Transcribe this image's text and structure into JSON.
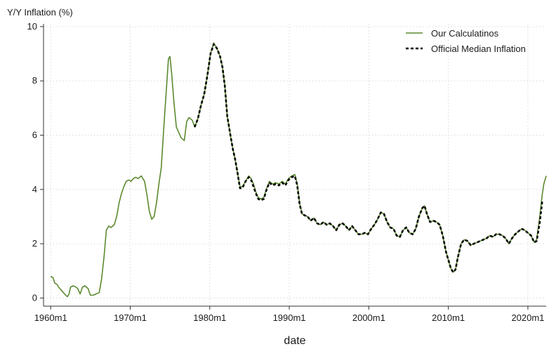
{
  "chart_data": {
    "type": "line",
    "ylabel": "Y/Y Inflation (%)",
    "xlabel": "date",
    "x_unit": "year",
    "xlim": [
      1960,
      2022.3
    ],
    "ylim": [
      0,
      10
    ],
    "grid": true,
    "legend_position": "top-right",
    "x_ticks": [
      {
        "value": 1960,
        "label": "1960m1"
      },
      {
        "value": 1970,
        "label": "1970m1"
      },
      {
        "value": 1980,
        "label": "1980m1"
      },
      {
        "value": 1990,
        "label": "1990m1"
      },
      {
        "value": 2000,
        "label": "2000m1"
      },
      {
        "value": 2010,
        "label": "2010m1"
      },
      {
        "value": 2020,
        "label": "2020m1"
      }
    ],
    "y_ticks": [
      {
        "value": 0,
        "label": "0"
      },
      {
        "value": 2,
        "label": "2"
      },
      {
        "value": 4,
        "label": "4"
      },
      {
        "value": 6,
        "label": "6"
      },
      {
        "value": 8,
        "label": "8"
      },
      {
        "value": 10,
        "label": "10"
      }
    ],
    "series": [
      {
        "name": "Our Calculatinos",
        "color": "#5b8a2f",
        "style": "solid",
        "points": [
          [
            1960.0,
            0.8
          ],
          [
            1960.3,
            0.75
          ],
          [
            1960.5,
            0.55
          ],
          [
            1960.8,
            0.5
          ],
          [
            1961.0,
            0.4
          ],
          [
            1961.3,
            0.3
          ],
          [
            1961.6,
            0.2
          ],
          [
            1961.9,
            0.1
          ],
          [
            1962.1,
            0.05
          ],
          [
            1962.3,
            0.15
          ],
          [
            1962.5,
            0.4
          ],
          [
            1962.8,
            0.45
          ],
          [
            1963.1,
            0.42
          ],
          [
            1963.4,
            0.35
          ],
          [
            1963.7,
            0.15
          ],
          [
            1964.0,
            0.4
          ],
          [
            1964.3,
            0.45
          ],
          [
            1964.7,
            0.35
          ],
          [
            1965.0,
            0.1
          ],
          [
            1965.3,
            0.1
          ],
          [
            1965.7,
            0.15
          ],
          [
            1966.1,
            0.2
          ],
          [
            1966.4,
            0.7
          ],
          [
            1966.7,
            1.5
          ],
          [
            1967.0,
            2.5
          ],
          [
            1967.3,
            2.65
          ],
          [
            1967.6,
            2.6
          ],
          [
            1968.0,
            2.7
          ],
          [
            1968.3,
            3.0
          ],
          [
            1968.6,
            3.5
          ],
          [
            1968.9,
            3.85
          ],
          [
            1969.2,
            4.1
          ],
          [
            1969.5,
            4.3
          ],
          [
            1969.8,
            4.35
          ],
          [
            1970.1,
            4.3
          ],
          [
            1970.4,
            4.4
          ],
          [
            1970.7,
            4.45
          ],
          [
            1971.0,
            4.4
          ],
          [
            1971.4,
            4.5
          ],
          [
            1971.8,
            4.3
          ],
          [
            1972.1,
            3.8
          ],
          [
            1972.4,
            3.2
          ],
          [
            1972.7,
            2.9
          ],
          [
            1973.0,
            3.0
          ],
          [
            1973.3,
            3.5
          ],
          [
            1973.6,
            4.2
          ],
          [
            1973.9,
            4.8
          ],
          [
            1974.2,
            6.2
          ],
          [
            1974.5,
            7.5
          ],
          [
            1974.8,
            8.8
          ],
          [
            1975.0,
            8.9
          ],
          [
            1975.2,
            8.3
          ],
          [
            1975.5,
            7.2
          ],
          [
            1975.8,
            6.3
          ],
          [
            1976.1,
            6.1
          ],
          [
            1976.4,
            5.9
          ],
          [
            1976.8,
            5.8
          ],
          [
            1977.1,
            6.5
          ],
          [
            1977.4,
            6.65
          ],
          [
            1977.8,
            6.55
          ],
          [
            1978.1,
            6.3
          ],
          [
            1978.5,
            6.6
          ],
          [
            1978.9,
            7.1
          ],
          [
            1979.3,
            7.5
          ],
          [
            1979.7,
            8.2
          ],
          [
            1980.1,
            9.0
          ],
          [
            1980.5,
            9.4
          ],
          [
            1980.9,
            9.2
          ],
          [
            1981.3,
            8.9
          ],
          [
            1981.6,
            8.5
          ],
          [
            1981.9,
            7.8
          ],
          [
            1982.2,
            6.7
          ],
          [
            1982.6,
            6.0
          ],
          [
            1982.9,
            5.5
          ],
          [
            1983.2,
            5.1
          ],
          [
            1983.5,
            4.6
          ],
          [
            1983.8,
            4.1
          ],
          [
            1984.1,
            4.1
          ],
          [
            1984.5,
            4.3
          ],
          [
            1984.9,
            4.5
          ],
          [
            1985.2,
            4.4
          ],
          [
            1985.5,
            4.2
          ],
          [
            1985.8,
            3.9
          ],
          [
            1986.1,
            3.7
          ],
          [
            1986.4,
            3.65
          ],
          [
            1986.8,
            3.7
          ],
          [
            1987.1,
            4.0
          ],
          [
            1987.5,
            4.3
          ],
          [
            1987.9,
            4.2
          ],
          [
            1988.3,
            4.25
          ],
          [
            1988.7,
            4.2
          ],
          [
            1989.1,
            4.3
          ],
          [
            1989.5,
            4.2
          ],
          [
            1989.9,
            4.4
          ],
          [
            1990.3,
            4.5
          ],
          [
            1990.7,
            4.55
          ],
          [
            1991.0,
            4.2
          ],
          [
            1991.3,
            3.5
          ],
          [
            1991.6,
            3.1
          ],
          [
            1991.9,
            3.05
          ],
          [
            1992.3,
            3.0
          ],
          [
            1992.7,
            2.85
          ],
          [
            1993.1,
            2.95
          ],
          [
            1993.5,
            2.75
          ],
          [
            1993.9,
            2.7
          ],
          [
            1994.3,
            2.8
          ],
          [
            1994.7,
            2.7
          ],
          [
            1995.1,
            2.75
          ],
          [
            1995.5,
            2.65
          ],
          [
            1995.9,
            2.5
          ],
          [
            1996.3,
            2.7
          ],
          [
            1996.7,
            2.75
          ],
          [
            1997.1,
            2.65
          ],
          [
            1997.5,
            2.5
          ],
          [
            1997.9,
            2.65
          ],
          [
            1998.3,
            2.5
          ],
          [
            1998.7,
            2.35
          ],
          [
            1999.1,
            2.35
          ],
          [
            1999.5,
            2.4
          ],
          [
            1999.9,
            2.35
          ],
          [
            2000.3,
            2.55
          ],
          [
            2000.7,
            2.7
          ],
          [
            2001.1,
            2.9
          ],
          [
            2001.5,
            3.15
          ],
          [
            2001.9,
            3.1
          ],
          [
            2002.3,
            2.8
          ],
          [
            2002.7,
            2.6
          ],
          [
            2003.1,
            2.55
          ],
          [
            2003.5,
            2.3
          ],
          [
            2003.9,
            2.25
          ],
          [
            2004.3,
            2.5
          ],
          [
            2004.7,
            2.6
          ],
          [
            2005.1,
            2.4
          ],
          [
            2005.5,
            2.35
          ],
          [
            2005.9,
            2.55
          ],
          [
            2006.3,
            3.0
          ],
          [
            2006.7,
            3.3
          ],
          [
            2007.0,
            3.4
          ],
          [
            2007.3,
            3.1
          ],
          [
            2007.7,
            2.8
          ],
          [
            2008.1,
            2.85
          ],
          [
            2008.5,
            2.8
          ],
          [
            2008.9,
            2.7
          ],
          [
            2009.3,
            2.3
          ],
          [
            2009.7,
            1.7
          ],
          [
            2010.0,
            1.4
          ],
          [
            2010.3,
            1.1
          ],
          [
            2010.6,
            0.95
          ],
          [
            2010.9,
            1.05
          ],
          [
            2011.2,
            1.5
          ],
          [
            2011.6,
            2.0
          ],
          [
            2012.0,
            2.15
          ],
          [
            2012.4,
            2.1
          ],
          [
            2012.8,
            1.95
          ],
          [
            2013.2,
            2.0
          ],
          [
            2013.6,
            2.05
          ],
          [
            2014.0,
            2.1
          ],
          [
            2014.4,
            2.15
          ],
          [
            2014.8,
            2.2
          ],
          [
            2015.2,
            2.3
          ],
          [
            2015.6,
            2.25
          ],
          [
            2016.0,
            2.35
          ],
          [
            2016.4,
            2.35
          ],
          [
            2016.8,
            2.3
          ],
          [
            2017.2,
            2.2
          ],
          [
            2017.6,
            2.0
          ],
          [
            2018.0,
            2.2
          ],
          [
            2018.4,
            2.35
          ],
          [
            2018.8,
            2.45
          ],
          [
            2019.2,
            2.55
          ],
          [
            2019.6,
            2.5
          ],
          [
            2020.0,
            2.4
          ],
          [
            2020.4,
            2.3
          ],
          [
            2020.8,
            2.05
          ],
          [
            2021.1,
            2.15
          ],
          [
            2021.5,
            3.0
          ],
          [
            2021.8,
            3.8
          ],
          [
            2022.0,
            4.2
          ],
          [
            2022.3,
            4.5
          ]
        ]
      },
      {
        "name": "Official Median Inflation",
        "color": "#000000",
        "style": "dashed",
        "points": [
          [
            1978.1,
            6.3
          ],
          [
            1978.5,
            6.6
          ],
          [
            1978.9,
            7.1
          ],
          [
            1979.3,
            7.5
          ],
          [
            1979.7,
            8.2
          ],
          [
            1980.1,
            9.0
          ],
          [
            1980.5,
            9.35
          ],
          [
            1980.9,
            9.2
          ],
          [
            1981.3,
            8.9
          ],
          [
            1981.6,
            8.5
          ],
          [
            1981.9,
            7.8
          ],
          [
            1982.2,
            6.7
          ],
          [
            1982.6,
            6.0
          ],
          [
            1982.9,
            5.5
          ],
          [
            1983.2,
            5.1
          ],
          [
            1983.5,
            4.6
          ],
          [
            1983.8,
            4.05
          ],
          [
            1984.1,
            4.05
          ],
          [
            1984.5,
            4.3
          ],
          [
            1984.9,
            4.45
          ],
          [
            1985.2,
            4.35
          ],
          [
            1985.5,
            4.1
          ],
          [
            1985.8,
            3.85
          ],
          [
            1986.1,
            3.65
          ],
          [
            1986.4,
            3.6
          ],
          [
            1986.8,
            3.65
          ],
          [
            1987.1,
            3.95
          ],
          [
            1987.5,
            4.25
          ],
          [
            1987.9,
            4.15
          ],
          [
            1988.3,
            4.2
          ],
          [
            1988.7,
            4.15
          ],
          [
            1989.1,
            4.25
          ],
          [
            1989.5,
            4.15
          ],
          [
            1989.9,
            4.35
          ],
          [
            1990.3,
            4.45
          ],
          [
            1990.7,
            4.5
          ],
          [
            1991.0,
            4.15
          ],
          [
            1991.3,
            3.45
          ],
          [
            1991.6,
            3.1
          ],
          [
            1991.9,
            3.05
          ],
          [
            1992.3,
            3.0
          ],
          [
            1992.7,
            2.85
          ],
          [
            1993.1,
            2.95
          ],
          [
            1993.5,
            2.75
          ],
          [
            1993.9,
            2.7
          ],
          [
            1994.3,
            2.8
          ],
          [
            1994.7,
            2.7
          ],
          [
            1995.1,
            2.75
          ],
          [
            1995.5,
            2.65
          ],
          [
            1995.9,
            2.5
          ],
          [
            1996.3,
            2.7
          ],
          [
            1996.7,
            2.75
          ],
          [
            1997.1,
            2.65
          ],
          [
            1997.5,
            2.5
          ],
          [
            1997.9,
            2.65
          ],
          [
            1998.3,
            2.5
          ],
          [
            1998.7,
            2.35
          ],
          [
            1999.1,
            2.35
          ],
          [
            1999.5,
            2.4
          ],
          [
            1999.9,
            2.35
          ],
          [
            2000.3,
            2.55
          ],
          [
            2000.7,
            2.7
          ],
          [
            2001.1,
            2.9
          ],
          [
            2001.5,
            3.15
          ],
          [
            2001.9,
            3.1
          ],
          [
            2002.3,
            2.8
          ],
          [
            2002.7,
            2.6
          ],
          [
            2003.1,
            2.55
          ],
          [
            2003.5,
            2.3
          ],
          [
            2003.9,
            2.25
          ],
          [
            2004.3,
            2.5
          ],
          [
            2004.7,
            2.6
          ],
          [
            2005.1,
            2.4
          ],
          [
            2005.5,
            2.35
          ],
          [
            2005.9,
            2.55
          ],
          [
            2006.3,
            3.0
          ],
          [
            2006.7,
            3.3
          ],
          [
            2007.0,
            3.4
          ],
          [
            2007.3,
            3.1
          ],
          [
            2007.7,
            2.8
          ],
          [
            2008.1,
            2.85
          ],
          [
            2008.5,
            2.8
          ],
          [
            2008.9,
            2.7
          ],
          [
            2009.3,
            2.3
          ],
          [
            2009.7,
            1.7
          ],
          [
            2010.0,
            1.4
          ],
          [
            2010.3,
            1.1
          ],
          [
            2010.6,
            0.95
          ],
          [
            2010.9,
            1.05
          ],
          [
            2011.2,
            1.5
          ],
          [
            2011.6,
            2.0
          ],
          [
            2012.0,
            2.15
          ],
          [
            2012.4,
            2.1
          ],
          [
            2012.8,
            1.95
          ],
          [
            2013.2,
            2.0
          ],
          [
            2013.6,
            2.05
          ],
          [
            2014.0,
            2.1
          ],
          [
            2014.4,
            2.15
          ],
          [
            2014.8,
            2.2
          ],
          [
            2015.2,
            2.3
          ],
          [
            2015.6,
            2.25
          ],
          [
            2016.0,
            2.35
          ],
          [
            2016.4,
            2.35
          ],
          [
            2016.8,
            2.3
          ],
          [
            2017.2,
            2.2
          ],
          [
            2017.6,
            2.0
          ],
          [
            2018.0,
            2.2
          ],
          [
            2018.4,
            2.35
          ],
          [
            2018.8,
            2.45
          ],
          [
            2019.2,
            2.55
          ],
          [
            2019.6,
            2.5
          ],
          [
            2020.0,
            2.4
          ],
          [
            2020.4,
            2.3
          ],
          [
            2020.8,
            2.05
          ],
          [
            2021.1,
            2.1
          ],
          [
            2021.5,
            2.8
          ],
          [
            2021.8,
            3.55
          ]
        ]
      }
    ]
  }
}
